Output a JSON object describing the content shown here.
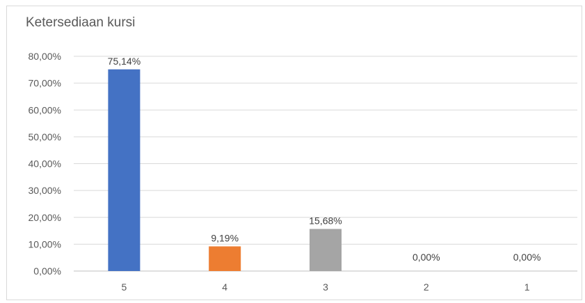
{
  "chart_data": {
    "type": "bar",
    "title": "Ketersediaan kursi",
    "categories": [
      "5",
      "4",
      "3",
      "2",
      "1"
    ],
    "values": [
      75.14,
      9.19,
      15.68,
      0.0,
      0.0
    ],
    "data_labels": [
      "75,14%",
      "9,19%",
      "15,68%",
      "0,00%",
      "0,00%"
    ],
    "bar_colors": [
      "#4472c4",
      "#ed7d31",
      "#a5a5a5",
      "#ffc000",
      "#5b9bd5"
    ],
    "ylim": [
      0,
      80
    ],
    "yticks": [
      {
        "value": 0,
        "label": "0,00%"
      },
      {
        "value": 10,
        "label": "10,00%"
      },
      {
        "value": 20,
        "label": "20,00%"
      },
      {
        "value": 30,
        "label": "30,00%"
      },
      {
        "value": 40,
        "label": "40,00%"
      },
      {
        "value": 50,
        "label": "50,00%"
      },
      {
        "value": 60,
        "label": "60,00%"
      },
      {
        "value": 70,
        "label": "70,00%"
      },
      {
        "value": 80,
        "label": "80,00%"
      }
    ],
    "grid": true,
    "legend": "none"
  }
}
